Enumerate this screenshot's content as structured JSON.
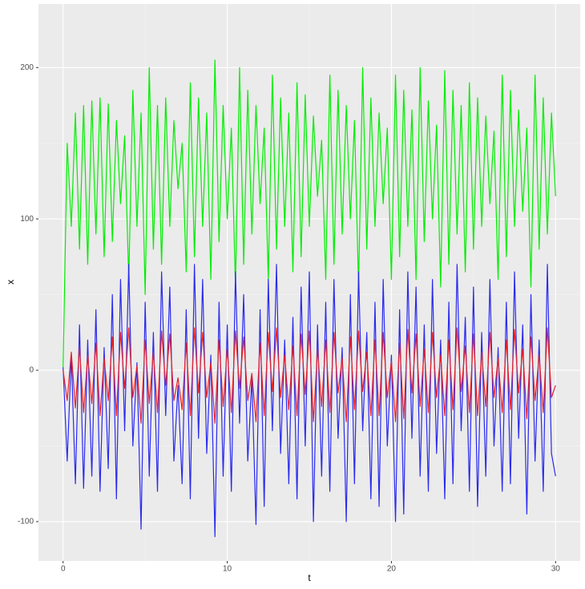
{
  "chart_data": {
    "type": "line",
    "x_label": "t",
    "y_label": "x",
    "xlim": [
      -1.5,
      31.5
    ],
    "xticks": [
      0,
      10,
      20,
      30
    ],
    "ylim": [
      -126,
      242
    ],
    "yticks": [
      -100,
      0,
      100,
      200
    ],
    "grid": true,
    "x": [
      0,
      0.25,
      0.5,
      0.75,
      1,
      1.25,
      1.5,
      1.75,
      2,
      2.25,
      2.5,
      2.75,
      3,
      3.25,
      3.5,
      3.75,
      4,
      4.25,
      4.5,
      4.75,
      5,
      5.25,
      5.5,
      5.75,
      6,
      6.25,
      6.5,
      6.75,
      7,
      7.25,
      7.5,
      7.75,
      8,
      8.25,
      8.5,
      8.75,
      9,
      9.25,
      9.5,
      9.75,
      10,
      10.25,
      10.5,
      10.75,
      11,
      11.25,
      11.5,
      11.75,
      12,
      12.25,
      12.5,
      12.75,
      13,
      13.25,
      13.5,
      13.75,
      14,
      14.25,
      14.5,
      14.75,
      15,
      15.25,
      15.5,
      15.75,
      16,
      16.25,
      16.5,
      16.75,
      17,
      17.25,
      17.5,
      17.75,
      18,
      18.25,
      18.5,
      18.75,
      19,
      19.25,
      19.5,
      19.75,
      20,
      20.25,
      20.5,
      20.75,
      21,
      21.25,
      21.5,
      21.75,
      22,
      22.25,
      22.5,
      22.75,
      23,
      23.25,
      23.5,
      23.75,
      24,
      24.25,
      24.5,
      24.75,
      25,
      25.25,
      25.5,
      25.75,
      26,
      26.25,
      26.5,
      26.75,
      27,
      27.25,
      27.5,
      27.75,
      28,
      28.25,
      28.5,
      28.75,
      29,
      29.25,
      29.5,
      29.75,
      30
    ],
    "series": [
      {
        "color": "#00ee00",
        "values": [
          2,
          150,
          95,
          170,
          80,
          175,
          70,
          178,
          90,
          180,
          75,
          176,
          85,
          165,
          110,
          155,
          60,
          185,
          95,
          170,
          50,
          200,
          80,
          175,
          70,
          180,
          95,
          165,
          120,
          150,
          65,
          190,
          75,
          180,
          95,
          170,
          60,
          205,
          85,
          175,
          100,
          160,
          55,
          200,
          70,
          185,
          90,
          175,
          110,
          160,
          60,
          195,
          80,
          180,
          95,
          170,
          65,
          190,
          75,
          182,
          95,
          168,
          115,
          152,
          60,
          195,
          70,
          185,
          90,
          175,
          100,
          165,
          55,
          200,
          80,
          180,
          95,
          170,
          110,
          160,
          60,
          195,
          75,
          185,
          95,
          172,
          60,
          200,
          85,
          178,
          100,
          162,
          55,
          198,
          70,
          185,
          90,
          175,
          65,
          190,
          80,
          180,
          95,
          168,
          110,
          158,
          60,
          195,
          75,
          185,
          95,
          172,
          105,
          160,
          55,
          195,
          80,
          180,
          90,
          170,
          115
        ]
      },
      {
        "color": "#2a2af0",
        "values": [
          2,
          -60,
          10,
          -75,
          30,
          -78,
          20,
          -70,
          40,
          -80,
          15,
          -65,
          50,
          -85,
          60,
          -40,
          70,
          -50,
          5,
          -105,
          45,
          -70,
          25,
          -80,
          65,
          -30,
          55,
          -60,
          -10,
          -75,
          40,
          -85,
          70,
          -45,
          60,
          -55,
          10,
          -110,
          45,
          -70,
          30,
          -80,
          65,
          -35,
          50,
          -60,
          -5,
          -102,
          40,
          -90,
          60,
          -40,
          70,
          -55,
          20,
          -75,
          35,
          -85,
          55,
          -50,
          65,
          -100,
          30,
          -70,
          45,
          -80,
          60,
          -45,
          15,
          -100,
          50,
          -75,
          65,
          -40,
          25,
          -85,
          45,
          -90,
          60,
          -50,
          10,
          -100,
          40,
          -95,
          65,
          -45,
          55,
          -70,
          30,
          -80,
          60,
          -55,
          20,
          -85,
          45,
          -75,
          70,
          -40,
          35,
          -80,
          55,
          -90,
          25,
          -70,
          60,
          -50,
          15,
          -80,
          45,
          -75,
          65,
          -45,
          30,
          -95,
          50,
          -60,
          20,
          -80,
          70,
          -55,
          -70
        ]
      },
      {
        "color": "#e8202a",
        "values": [
          0,
          -20,
          12,
          -25,
          15,
          -28,
          10,
          -22,
          18,
          -30,
          8,
          -20,
          22,
          -30,
          25,
          -12,
          28,
          -18,
          3,
          -35,
          20,
          -22,
          12,
          -28,
          26,
          -10,
          24,
          -20,
          -5,
          -26,
          18,
          -30,
          28,
          -15,
          25,
          -18,
          5,
          -35,
          20,
          -24,
          14,
          -28,
          26,
          -12,
          22,
          -20,
          -2,
          -34,
          18,
          -30,
          25,
          -14,
          28,
          -18,
          10,
          -26,
          16,
          -30,
          24,
          -16,
          26,
          -34,
          14,
          -24,
          20,
          -28,
          25,
          -15,
          8,
          -34,
          22,
          -26,
          26,
          -14,
          12,
          -30,
          20,
          -30,
          25,
          -18,
          6,
          -34,
          18,
          -32,
          27,
          -15,
          24,
          -24,
          14,
          -28,
          25,
          -18,
          10,
          -30,
          20,
          -26,
          28,
          -14,
          16,
          -28,
          24,
          -30,
          12,
          -24,
          25,
          -18,
          8,
          -28,
          20,
          -26,
          27,
          -15,
          14,
          -32,
          22,
          -20,
          10,
          -28,
          28,
          -18,
          -10
        ]
      }
    ]
  }
}
